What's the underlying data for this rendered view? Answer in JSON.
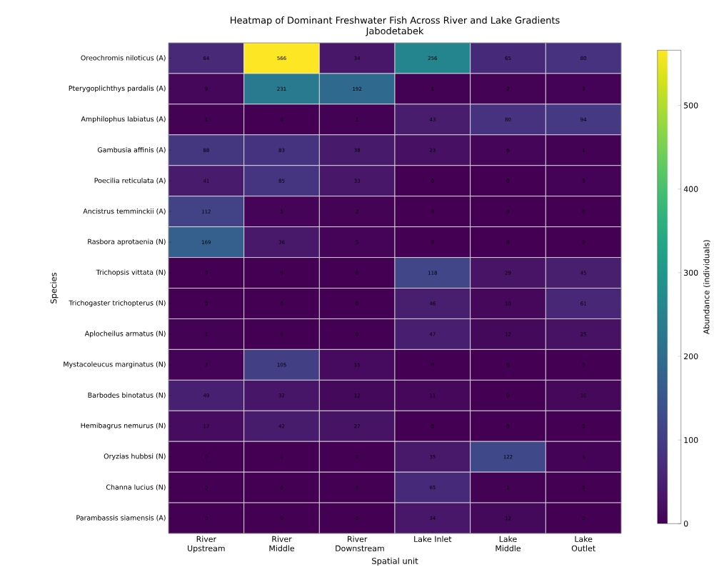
{
  "chart_data": {
    "type": "heatmap",
    "title": "Heatmap of Dominant Freshwater Fish Across River and Lake Gradients",
    "subtitle": "Jabodetabek",
    "xlabel": "Spatial unit",
    "ylabel": "Species",
    "clabel": "Abundance (individuals)",
    "categories": [
      "River Upstream",
      "River Middle",
      "River Downstream",
      "Lake Inlet",
      "Lake Middle",
      "Lake Outlet"
    ],
    "y_categories": [
      "Oreochromis niloticus (A)",
      "Pterygoplichthys pardalis (A)",
      "Amphilophus labiatus (A)",
      "Gambusia affinis (A)",
      "Poecilia reticulata (A)",
      "Ancistrus temminckii (A)",
      "Rasbora aprotaenia (N)",
      "Trichopsis vittata (N)",
      "Trichogaster trichopterus (N)",
      "Aplocheilus armatus (N)",
      "Mystacoleucus marginatus (N)",
      "Barbodes binotatus (N)",
      "Hemibagrus nemurus (N)",
      "Oryzias hubbsi (N)",
      "Channa lucius (N)",
      "Parambassis siamensis (A)"
    ],
    "cells": [
      [
        64,
        566,
        34,
        256,
        65,
        80
      ],
      [
        9,
        231,
        192,
        1,
        2,
        3
      ],
      [
        1,
        0,
        1,
        43,
        80,
        94
      ],
      [
        88,
        83,
        38,
        23,
        6,
        1
      ],
      [
        41,
        85,
        33,
        0,
        0,
        3
      ],
      [
        112,
        5,
        2,
        0,
        0,
        0
      ],
      [
        169,
        36,
        5,
        0,
        0,
        0
      ],
      [
        0,
        0,
        0,
        118,
        29,
        45
      ],
      [
        0,
        0,
        0,
        46,
        10,
        61
      ],
      [
        1,
        0,
        0,
        47,
        12,
        25
      ],
      [
        3,
        105,
        15,
        0,
        0,
        0
      ],
      [
        49,
        32,
        12,
        11,
        0,
        10
      ],
      [
        17,
        42,
        27,
        0,
        0,
        0
      ],
      [
        0,
        0,
        0,
        35,
        122,
        3
      ],
      [
        0,
        0,
        0,
        65,
        1,
        0
      ],
      [
        0,
        0,
        0,
        34,
        12,
        0
      ]
    ],
    "clim": [
      0,
      566
    ],
    "cticks": [
      0,
      100,
      200,
      300,
      400,
      500
    ],
    "data_labels": true
  }
}
